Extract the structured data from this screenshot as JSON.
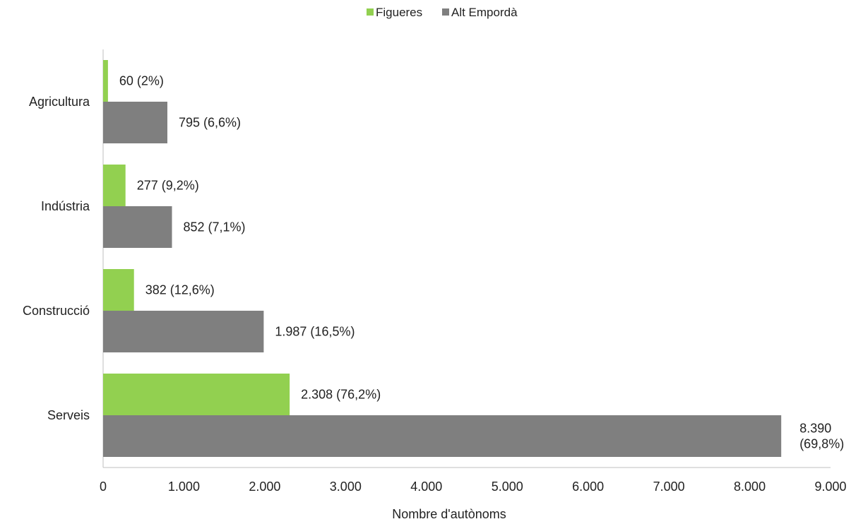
{
  "chart_data": {
    "type": "bar",
    "orientation": "horizontal",
    "categories": [
      "Agricultura",
      "Indústria",
      "Construcció",
      "Serveis"
    ],
    "series": [
      {
        "name": "Figueres",
        "color": "#92d050",
        "values": [
          60,
          277,
          382,
          2308
        ],
        "labels": [
          "60 (2%)",
          "277 (9,2%)",
          "382 (12,6%)",
          "2.308 (76,2%)"
        ]
      },
      {
        "name": "Alt Empordà",
        "color": "#7f7f7f",
        "values": [
          795,
          852,
          1987,
          8390
        ],
        "labels": [
          "795 (6,6%)",
          "852 (7,1%)",
          "1.987 (16,5%)",
          "8.390\n(69,8%)"
        ]
      }
    ],
    "xlabel": "Nombre d'autònoms",
    "xlim": [
      0,
      9000
    ],
    "xticks": [
      0,
      1000,
      2000,
      3000,
      4000,
      5000,
      6000,
      7000,
      8000,
      9000
    ],
    "xtick_labels": [
      "0",
      "1.000",
      "2.000",
      "3.000",
      "4.000",
      "5.000",
      "6.000",
      "7.000",
      "8.000",
      "9.000"
    ],
    "grid": false,
    "legend_position": "top-center"
  }
}
